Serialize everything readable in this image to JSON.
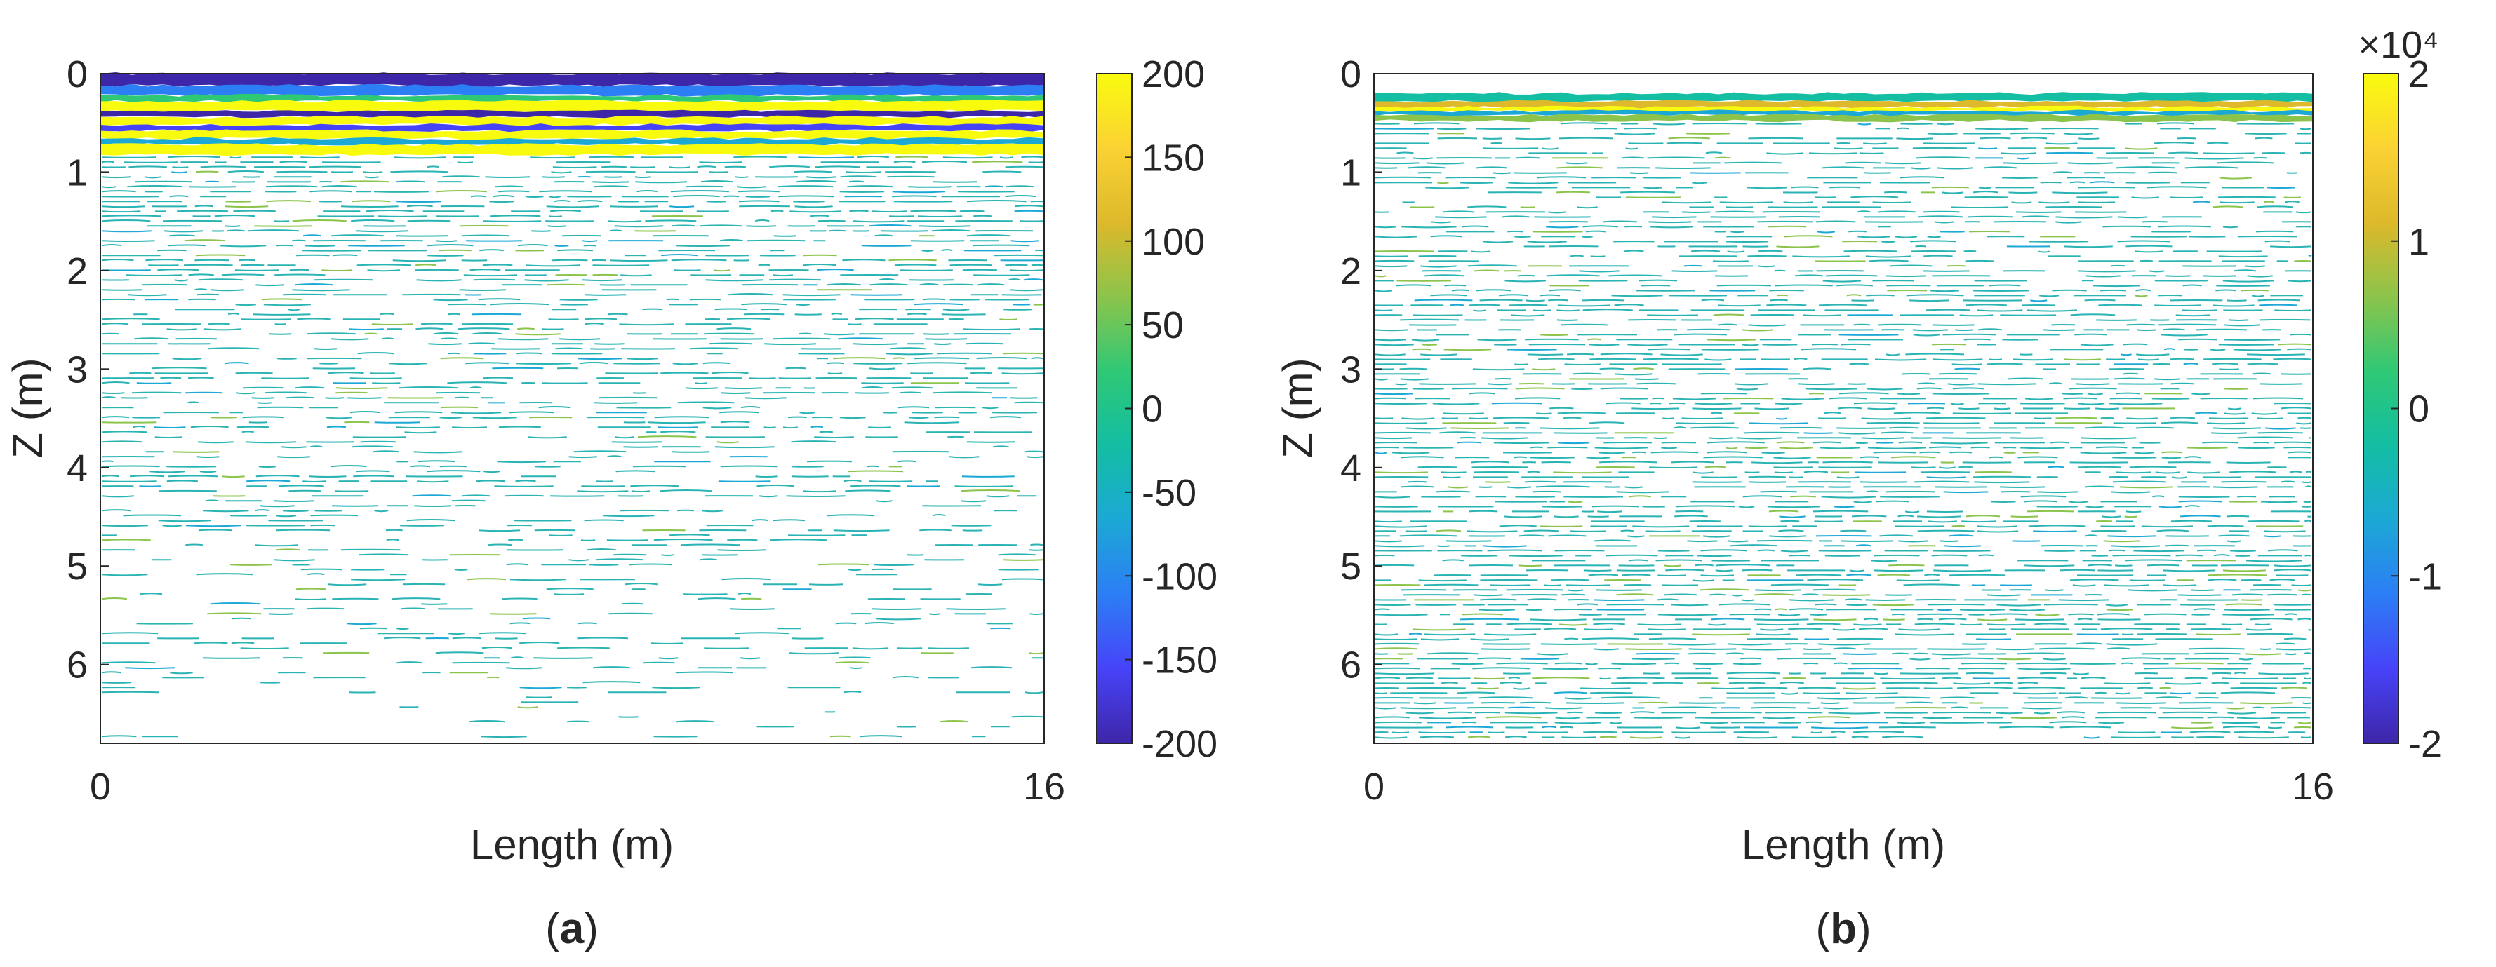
{
  "colormap": [
    "#3e26a8",
    "#4743f8",
    "#2c7ef5",
    "#1ca8d5",
    "#13bea3",
    "#2fc875",
    "#8cc44b",
    "#ddb92b",
    "#fbd234",
    "#f9fb0e"
  ],
  "colors": {
    "contour": "#2ab3b3",
    "axis": "#262626"
  },
  "chart_data": [
    {
      "id": "a",
      "type": "heatmap",
      "caption": {
        "open": "(",
        "letter": "a",
        "close": ")"
      },
      "xlabel": "Length (m)",
      "ylabel": "Z (m)",
      "xlim": [
        0,
        16
      ],
      "ylim": [
        0,
        6.8
      ],
      "y_reversed": true,
      "xticks": [
        "0",
        "16"
      ],
      "yticks": [
        "0",
        "1",
        "2",
        "3",
        "4",
        "5",
        "6"
      ],
      "colorbar": {
        "range": [
          -200,
          200
        ],
        "ticks": [
          "200",
          "150",
          "100",
          "50",
          "0",
          "-50",
          "-100",
          "-150",
          "-200"
        ],
        "exponent_label": ""
      },
      "bands": [
        {
          "z": [
            0.0,
            0.12
          ],
          "level": -1.0
        },
        {
          "z": [
            0.12,
            0.22
          ],
          "level": -0.55
        },
        {
          "z": [
            0.22,
            0.28
          ],
          "level": 0.2
        },
        {
          "z": [
            0.28,
            0.38
          ],
          "level": 1.0
        },
        {
          "z": [
            0.38,
            0.44
          ],
          "level": -0.9
        },
        {
          "z": [
            0.44,
            0.52
          ],
          "level": 1.0
        },
        {
          "z": [
            0.52,
            0.58
          ],
          "level": -0.8
        },
        {
          "z": [
            0.58,
            0.66
          ],
          "level": 1.0
        },
        {
          "z": [
            0.66,
            0.72
          ],
          "level": -0.4
        },
        {
          "z": [
            0.72,
            0.82
          ],
          "level": 0.9
        }
      ],
      "contour_density": {
        "top": 0.78,
        "bottom": 0.12
      }
    },
    {
      "id": "b",
      "type": "heatmap",
      "caption": {
        "open": "(",
        "letter": "b",
        "close": ")"
      },
      "xlabel": "Length (m)",
      "ylabel": "Z (m)",
      "xlim": [
        0,
        16
      ],
      "ylim": [
        0,
        6.8
      ],
      "y_reversed": true,
      "xticks": [
        "0",
        "16"
      ],
      "yticks": [
        "0",
        "1",
        "2",
        "3",
        "4",
        "5",
        "6"
      ],
      "colorbar": {
        "range": [
          -2,
          2
        ],
        "ticks": [
          "2",
          "1",
          "0",
          "-1",
          "-2"
        ],
        "exponent_label": "×10⁴"
      },
      "bands": [
        {
          "z": [
            0.2,
            0.28
          ],
          "level": -0.2
        },
        {
          "z": [
            0.28,
            0.34
          ],
          "level": 0.6
        },
        {
          "z": [
            0.34,
            0.38
          ],
          "level": 0.9
        },
        {
          "z": [
            0.38,
            0.42
          ],
          "level": -0.3
        },
        {
          "z": [
            0.42,
            0.48
          ],
          "level": 0.25
        }
      ],
      "contour_density": {
        "top": 0.55,
        "bottom": 0.85
      }
    }
  ]
}
